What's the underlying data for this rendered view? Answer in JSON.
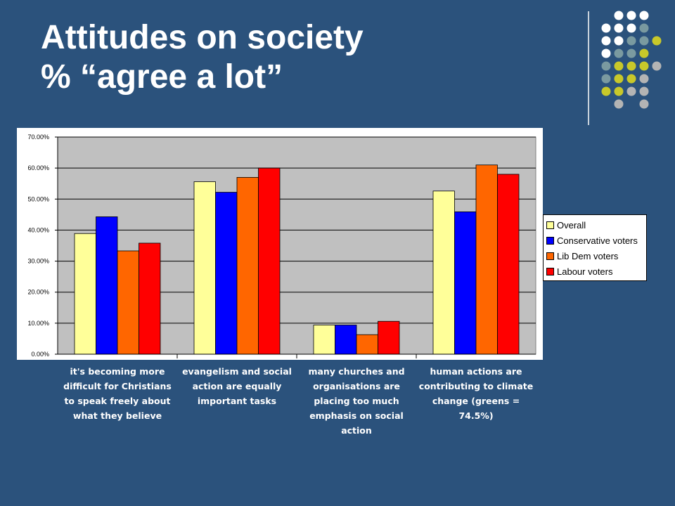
{
  "slide": {
    "title_line1": "Attitudes on society",
    "title_line2": "% “agree a lot”"
  },
  "decoration": {
    "icon": "dot-grid-icon",
    "colors": [
      "#ffffff",
      "#7a9aa0",
      "#c8c82a",
      "#b4b4b4"
    ]
  },
  "chart_data": {
    "type": "bar",
    "categories": [
      "it's becoming more difficult for Christians to speak freely about what they believe",
      "evangelism and social action are equally important tasks",
      "many churches and organisations are placing too much emphasis on social action",
      "human actions are contributing to climate change (greens = 74.5%)"
    ],
    "series": [
      {
        "name": "Overall",
        "color": "#ffff99",
        "values": [
          38.9,
          55.6,
          9.4,
          52.6
        ]
      },
      {
        "name": "Conservative voters",
        "color": "#0000ff",
        "values": [
          44.3,
          52.2,
          9.4,
          45.9
        ]
      },
      {
        "name": "Lib Dem voters",
        "color": "#ff6600",
        "values": [
          33.3,
          57.0,
          6.3,
          61.0
        ]
      },
      {
        "name": "Labour voters",
        "color": "#ff0000",
        "values": [
          35.8,
          60.0,
          10.6,
          58.0
        ]
      }
    ],
    "y_ticks": [
      "0.00%",
      "10.00%",
      "20.00%",
      "30.00%",
      "40.00%",
      "50.00%",
      "60.00%",
      "70.00%"
    ],
    "ylim": [
      0,
      70
    ],
    "grid": true,
    "legend_position": "right",
    "plot_background": "#c0c0c0"
  }
}
